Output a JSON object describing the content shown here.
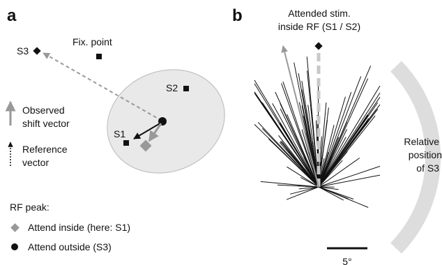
{
  "panel_a": {
    "letter": "a",
    "fix_point": "Fix. point",
    "s3": "S3",
    "s2": "S2",
    "s1": "S1",
    "observed_line1": "Observed",
    "observed_line2": "shift vector",
    "reference_line1": "Reference",
    "reference_line2": "vector",
    "rf_peak": "RF peak:",
    "attend_inside": "Attend inside (here: S1)",
    "attend_outside": "Attend outside (S3)"
  },
  "panel_b": {
    "letter": "b",
    "attended_line1": "Attended stim.",
    "attended_line2": "inside RF (S1 / S2)",
    "relative_line1": "Relative",
    "relative_line2": "position",
    "relative_line3": "of S3",
    "scale_label": "5°"
  },
  "colors": {
    "observed": "#999999",
    "rf_ellipse": "#e9e9e9",
    "rf_outline": "#b8b8b8",
    "arc": "#dddddd",
    "black": "#111111"
  }
}
